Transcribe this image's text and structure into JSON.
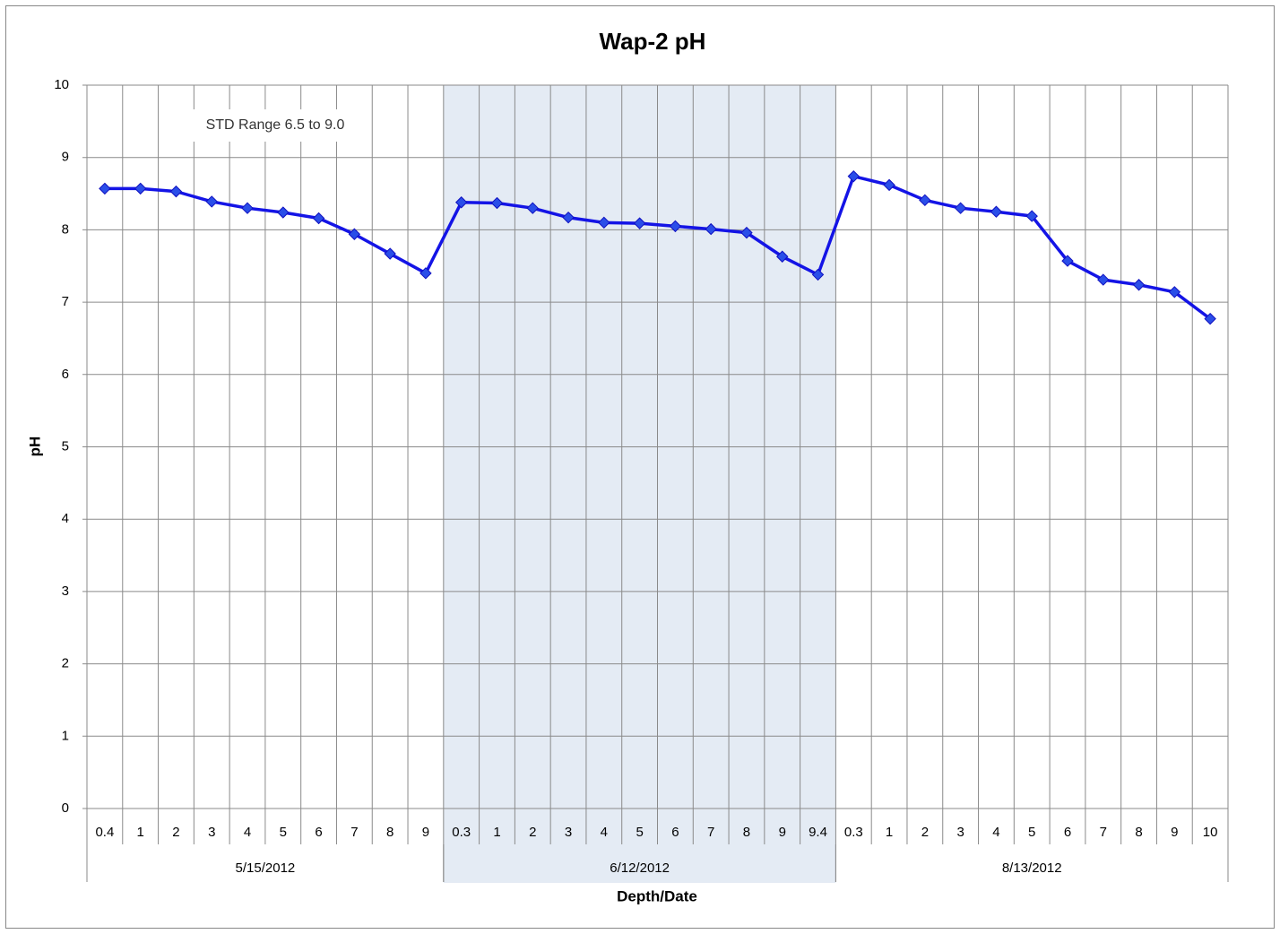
{
  "chart_data": {
    "type": "line",
    "title": "Wap-2 pH",
    "y_label": "pH",
    "x_label": "Depth/Date",
    "annotation": "STD Range 6.5 to 9.0",
    "ylim": [
      0,
      10
    ],
    "yticks": [
      0,
      1,
      2,
      3,
      4,
      5,
      6,
      7,
      8,
      9,
      10
    ],
    "grid": true,
    "color": "#1414e6",
    "marker_color": "#2a4ee8",
    "shade_color": "#e4ebf4",
    "groups": [
      {
        "label": "5/15/2012",
        "shaded": false,
        "categories": [
          "0.4",
          "1",
          "2",
          "3",
          "4",
          "5",
          "6",
          "7",
          "8",
          "9"
        ],
        "values": [
          8.57,
          8.57,
          8.53,
          8.39,
          8.3,
          8.24,
          8.16,
          7.94,
          7.67,
          7.4
        ]
      },
      {
        "label": "6/12/2012",
        "shaded": true,
        "categories": [
          "0.3",
          "1",
          "2",
          "3",
          "4",
          "5",
          "6",
          "7",
          "8",
          "9",
          "9.4"
        ],
        "values": [
          8.38,
          8.37,
          8.3,
          8.17,
          8.1,
          8.09,
          8.05,
          8.01,
          7.96,
          7.63,
          7.38
        ]
      },
      {
        "label": "8/13/2012",
        "shaded": false,
        "categories": [
          "0.3",
          "1",
          "2",
          "3",
          "4",
          "5",
          "6",
          "7",
          "8",
          "9",
          "10"
        ],
        "values": [
          8.74,
          8.62,
          8.41,
          8.3,
          8.25,
          8.19,
          7.57,
          7.31,
          7.24,
          7.14,
          6.77
        ]
      }
    ]
  }
}
